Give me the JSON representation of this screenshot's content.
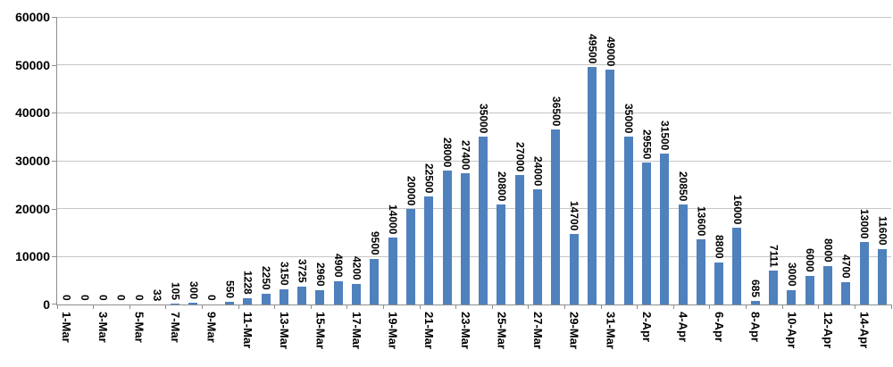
{
  "chart_data": {
    "type": "bar",
    "categories": [
      "1-Mar",
      "2-Mar",
      "3-Mar",
      "4-Mar",
      "5-Mar",
      "6-Mar",
      "7-Mar",
      "8-Mar",
      "9-Mar",
      "10-Mar",
      "11-Mar",
      "12-Mar",
      "13-Mar",
      "14-Mar",
      "15-Mar",
      "16-Mar",
      "17-Mar",
      "18-Mar",
      "19-Mar",
      "20-Mar",
      "21-Mar",
      "22-Mar",
      "23-Mar",
      "24-Mar",
      "25-Mar",
      "26-Mar",
      "27-Mar",
      "28-Mar",
      "29-Mar",
      "30-Mar",
      "31-Mar",
      "1-Apr",
      "2-Apr",
      "3-Apr",
      "4-Apr",
      "5-Apr",
      "6-Apr",
      "7-Apr",
      "8-Apr",
      "9-Apr",
      "10-Apr",
      "11-Apr",
      "12-Apr",
      "13-Apr",
      "14-Apr",
      "15-Apr"
    ],
    "values": [
      0,
      0,
      0,
      0,
      0,
      33,
      105,
      300,
      0,
      550,
      1228,
      2250,
      3150,
      3725,
      2960,
      4900,
      4200,
      9500,
      14000,
      20000,
      22500,
      28000,
      27400,
      35000,
      20800,
      27000,
      24000,
      36500,
      14700,
      49500,
      49000,
      35000,
      29550,
      31500,
      20850,
      13600,
      8800,
      16000,
      685,
      7111,
      3000,
      6000,
      8000,
      4700,
      13000,
      11600
    ],
    "data_labels": [
      0,
      0,
      0,
      0,
      0,
      33,
      105,
      300,
      0,
      550,
      1228,
      2250,
      3150,
      3725,
      2960,
      4900,
      4200,
      9500,
      14000,
      20000,
      22500,
      28000,
      27400,
      35000,
      20800,
      27000,
      24000,
      36500,
      14700,
      49500,
      49000,
      35000,
      29550,
      31500,
      20850,
      13600,
      8800,
      16000,
      685,
      7111,
      3000,
      6000,
      8000,
      4700,
      13000,
      11600
    ],
    "x_tick_labels": [
      "1-Mar",
      "3-Mar",
      "5-Mar",
      "7-Mar",
      "9-Mar",
      "11-Mar",
      "13-Mar",
      "15-Mar",
      "17-Mar",
      "19-Mar",
      "21-Mar",
      "23-Mar",
      "25-Mar",
      "27-Mar",
      "29-Mar",
      "31-Mar",
      "2-Apr",
      "4-Apr",
      "6-Apr",
      "8-Apr",
      "10-Apr",
      "12-Apr",
      "14-Apr"
    ],
    "y_ticks": [
      0,
      10000,
      20000,
      30000,
      40000,
      50000,
      60000
    ],
    "y_tick_labels": [
      "0",
      "10000",
      "20000",
      "30000",
      "40000",
      "50000",
      "60000"
    ],
    "ylim": [
      0,
      60000
    ],
    "grid": true,
    "legend": "none",
    "data_label_orientation": "vertical-rotated-90",
    "x_label_orientation": "vertical-rotated-90",
    "bar_color": "#4F81BD",
    "gridline_color": "#C6C6C6",
    "axis_color": "#8E8E8E",
    "text_color": "#000000"
  }
}
